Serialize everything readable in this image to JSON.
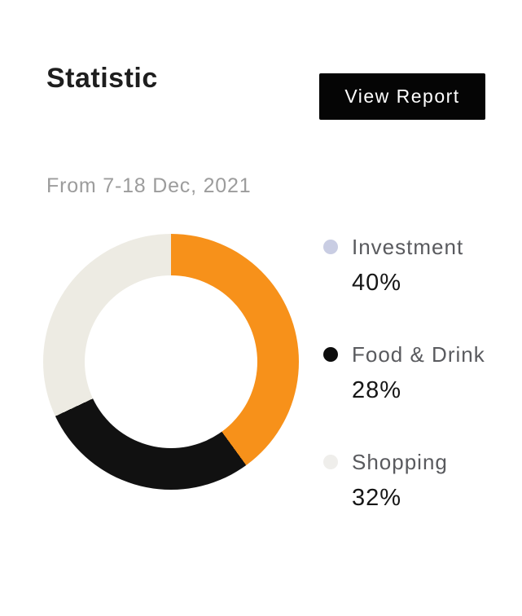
{
  "header": {
    "title": "Statistic",
    "view_report_label": "View Report"
  },
  "subtitle": "From 7-18 Dec, 2021",
  "chart_data": {
    "type": "pie",
    "donut": true,
    "title": "Statistic",
    "period": "From 7-18 Dec, 2021",
    "categories": [
      "Investment",
      "Food & Drink",
      "Shopping"
    ],
    "values": [
      40,
      28,
      32
    ],
    "unit": "%",
    "start_angle_deg": 0,
    "direction": "clockwise",
    "slice_colors": [
      "#F7911A",
      "#111111",
      "#EDEBE3"
    ],
    "legend_dot_colors": [
      "#C9CDE3",
      "#0D0D0D",
      "#EFEEEB"
    ],
    "legend_position": "right",
    "inner_radius_ratio": 0.67
  },
  "legend": {
    "items": [
      {
        "label": "Investment",
        "value_label": "40%",
        "dot_color": "#C9CDE3"
      },
      {
        "label": "Food & Drink",
        "value_label": "28%",
        "dot_color": "#0D0D0D"
      },
      {
        "label": "Shopping",
        "value_label": "32%",
        "dot_color": "#EFEEEB"
      }
    ]
  },
  "colors": {
    "background": "#FFFFFF",
    "accent_orange": "#F7911A",
    "slice_black": "#111111",
    "slice_cream": "#EDEBE3",
    "button_bg": "#050505",
    "button_text": "#FFFFFF",
    "title_text": "#1E1E1E",
    "subtitle_text": "#9C9C9C",
    "legend_label_text": "#595A5E",
    "legend_value_text": "#161616"
  }
}
